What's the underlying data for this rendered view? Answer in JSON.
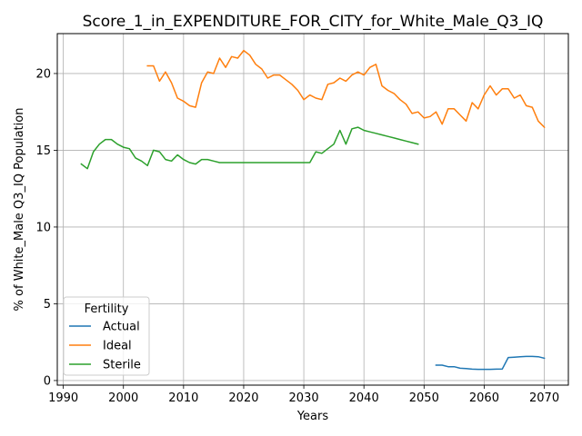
{
  "chart_data": {
    "type": "line",
    "title": "Score_1_in_EXPENDITURE_FOR_CITY_for_White_Male_Q3_IQ",
    "xlabel": "Years",
    "ylabel": "% of White_Male Q3_IQ Population",
    "xlim": [
      1989,
      2074
    ],
    "ylim": [
      -0.3,
      22.6
    ],
    "xticks": [
      1990,
      2000,
      2010,
      2020,
      2030,
      2040,
      2050,
      2060,
      2070
    ],
    "yticks": [
      0,
      5,
      10,
      15,
      20
    ],
    "grid": true,
    "legend": {
      "title": "Fertility",
      "placement": "lower-left"
    },
    "series": [
      {
        "name": "Actual",
        "color": "#1f77b4",
        "x": [
          2052,
          2053,
          2054,
          2055,
          2056,
          2057,
          2058,
          2059,
          2060,
          2061,
          2062,
          2063,
          2064,
          2065,
          2066,
          2067,
          2068,
          2069,
          2070
        ],
        "y": [
          1.0,
          1.0,
          0.9,
          0.9,
          0.8,
          0.78,
          0.74,
          0.73,
          0.73,
          0.73,
          0.74,
          0.75,
          1.5,
          1.52,
          1.55,
          1.57,
          1.57,
          1.55,
          1.45
        ]
      },
      {
        "name": "Ideal",
        "color": "#ff7f0e",
        "x": [
          2004,
          2005,
          2006,
          2007,
          2008,
          2009,
          2010,
          2011,
          2012,
          2013,
          2014,
          2015,
          2016,
          2017,
          2018,
          2019,
          2020,
          2021,
          2022,
          2023,
          2024,
          2025,
          2026,
          2027,
          2028,
          2029,
          2030,
          2031,
          2032,
          2033,
          2034,
          2035,
          2036,
          2037,
          2038,
          2039,
          2040,
          2041,
          2042,
          2043,
          2044,
          2045,
          2046,
          2047,
          2048,
          2049,
          2050,
          2051,
          2052,
          2053,
          2054,
          2055,
          2056,
          2057,
          2058,
          2059,
          2060,
          2061,
          2062,
          2063,
          2064,
          2065,
          2066,
          2067,
          2068,
          2069,
          2070
        ],
        "y": [
          20.5,
          20.5,
          19.5,
          20.1,
          19.4,
          18.4,
          18.2,
          17.9,
          17.8,
          19.4,
          20.1,
          20.0,
          21.0,
          20.4,
          21.1,
          21.0,
          21.5,
          21.2,
          20.6,
          20.3,
          19.7,
          19.9,
          19.9,
          19.6,
          19.3,
          18.9,
          18.3,
          18.6,
          18.4,
          18.3,
          19.3,
          19.4,
          19.7,
          19.5,
          19.9,
          20.1,
          19.9,
          20.4,
          20.6,
          19.2,
          18.9,
          18.7,
          18.3,
          18.0,
          17.4,
          17.5,
          17.1,
          17.2,
          17.5,
          16.7,
          17.7,
          17.7,
          17.3,
          16.9,
          18.1,
          17.7,
          18.6,
          19.2,
          18.6,
          19.0,
          19.0,
          18.4,
          18.6,
          17.9,
          17.8,
          16.9,
          16.5
        ]
      },
      {
        "name": "Sterile",
        "color": "#2ca02c",
        "x": [
          1993,
          1994,
          1995,
          1996,
          1997,
          1998,
          1999,
          2000,
          2001,
          2002,
          2003,
          2004,
          2005,
          2006,
          2007,
          2008,
          2009,
          2010,
          2011,
          2012,
          2013,
          2014,
          2015,
          2016,
          2017,
          2018,
          2019,
          2020,
          2021,
          2022,
          2023,
          2024,
          2025,
          2026,
          2027,
          2028,
          2029,
          2030,
          2031,
          2032,
          2033,
          2034,
          2035,
          2036,
          2037,
          2038,
          2039,
          2040,
          2041,
          2042,
          2043,
          2044,
          2045,
          2046,
          2047,
          2048,
          2049
        ],
        "y": [
          14.1,
          13.8,
          14.9,
          15.4,
          15.7,
          15.7,
          15.4,
          15.2,
          15.1,
          14.5,
          14.3,
          14.0,
          15.0,
          14.9,
          14.4,
          14.3,
          14.7,
          14.4,
          14.2,
          14.1,
          14.4,
          14.4,
          14.3,
          14.2,
          14.2,
          14.2,
          14.2,
          14.2,
          14.2,
          14.2,
          14.2,
          14.2,
          14.2,
          14.2,
          14.2,
          14.2,
          14.2,
          14.2,
          14.2,
          14.9,
          14.8,
          15.1,
          15.4,
          16.3,
          15.4,
          16.4,
          16.5,
          16.3,
          16.2,
          16.1,
          16.0,
          15.9,
          15.8,
          15.7,
          15.6,
          15.5,
          15.4
        ]
      }
    ]
  }
}
